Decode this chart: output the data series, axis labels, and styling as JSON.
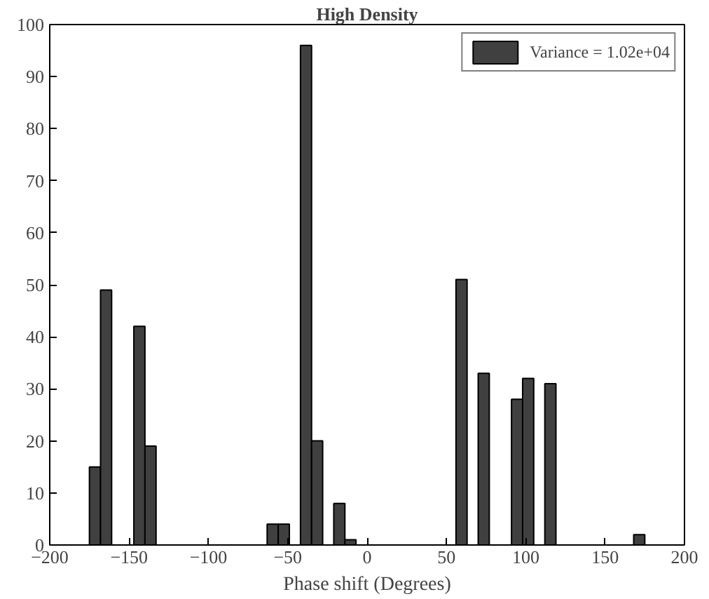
{
  "chart_data": {
    "type": "histogram",
    "title": "High Density",
    "xlabel": "Phase shift (Degrees)",
    "bins": [
      -175,
      -168,
      -161,
      -154,
      -147,
      -140,
      -133,
      -126,
      -119,
      -112,
      -105,
      -98,
      -91,
      -84,
      -77,
      -70,
      -63,
      -56,
      -49,
      -42,
      -35,
      -28,
      -21,
      -14,
      -7,
      0,
      7,
      14,
      21,
      28,
      35,
      42,
      49,
      56,
      63,
      70,
      77,
      84,
      91,
      98,
      105,
      112,
      119,
      126,
      133,
      140,
      147,
      154,
      161,
      168,
      175
    ],
    "series": [
      {
        "name": "Variance = 1.02e+04",
        "color": "#404040",
        "values": [
          15,
          49,
          0,
          0,
          42,
          19,
          0,
          0,
          0,
          0,
          0,
          0,
          0,
          0,
          0,
          0,
          4,
          4,
          0,
          96,
          20,
          0,
          8,
          1,
          0,
          0,
          0,
          0,
          0,
          0,
          0,
          0,
          0,
          51,
          0,
          33,
          0,
          0,
          28,
          32,
          0,
          31,
          0,
          0,
          0,
          0,
          0,
          0,
          0,
          2
        ]
      }
    ],
    "xlim": [
      -200,
      200
    ],
    "xticks": [
      -200,
      -150,
      -100,
      -50,
      0,
      50,
      100,
      150,
      200
    ],
    "ylim": [
      0,
      100
    ],
    "yticks": [
      0,
      10,
      20,
      30,
      40,
      50,
      60,
      70,
      80,
      90,
      100
    ],
    "grid": false,
    "legend": "top right"
  }
}
